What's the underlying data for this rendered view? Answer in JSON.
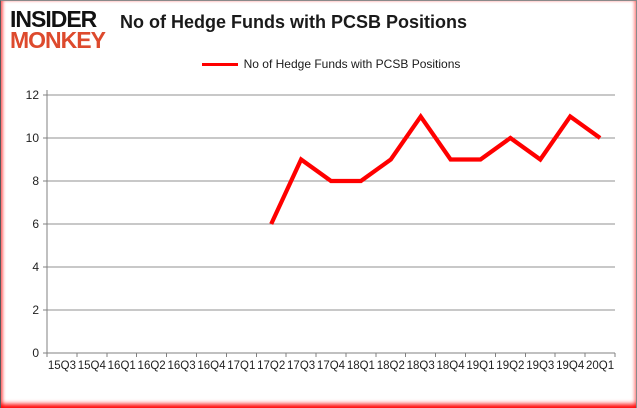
{
  "logo": {
    "line1": "INSIDER",
    "line2": "MONKEY",
    "line2_color": "#dd4a2d"
  },
  "header": {
    "title": "No of Hedge Funds with PCSB Positions"
  },
  "legend": {
    "label": "No of Hedge Funds with PCSB Positions",
    "line_color": "#ff0000"
  },
  "colors": {
    "grid": "#919191",
    "axis": "#808080",
    "tick_text": "#1f1f1f",
    "line": "#ff0000"
  },
  "chart_data": {
    "type": "line",
    "title": "No of Hedge Funds with PCSB Positions",
    "categories": [
      "15Q3",
      "15Q4",
      "16Q1",
      "16Q2",
      "16Q3",
      "16Q4",
      "17Q1",
      "17Q2",
      "17Q3",
      "17Q4",
      "18Q1",
      "18Q2",
      "18Q3",
      "18Q4",
      "19Q1",
      "19Q2",
      "19Q3",
      "19Q4",
      "20Q1"
    ],
    "series": [
      {
        "name": "No of Hedge Funds with PCSB Positions",
        "color": "#ff0000",
        "values": [
          null,
          null,
          null,
          null,
          null,
          null,
          null,
          6,
          9,
          8,
          8,
          9,
          11,
          9,
          9,
          10,
          9,
          11,
          10
        ]
      }
    ],
    "xlabel": "",
    "ylabel": "",
    "ylim": [
      0,
      12
    ],
    "yticks": [
      0,
      2,
      4,
      6,
      8,
      10,
      12
    ],
    "grid": "horizontal-only",
    "legend_position": "top-center"
  }
}
